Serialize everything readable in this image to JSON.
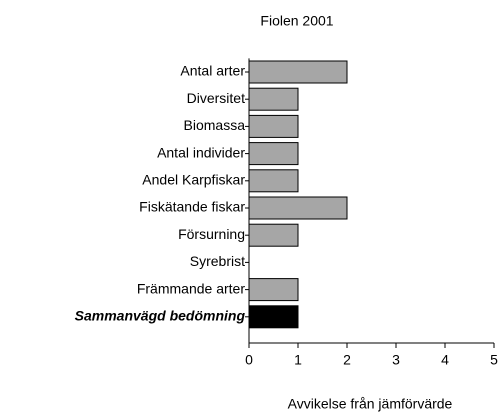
{
  "chart_data": {
    "type": "barh",
    "title": "Fiolen 2001",
    "categories": [
      "Antal arter",
      "Diversitet",
      "Biomassa",
      "Antal individer",
      "Andel Karpfiskar",
      "Fiskätande fiskar",
      "Försurning",
      "Syrebrist",
      "Främmande arter",
      "Sammanvägd bedömning"
    ],
    "values": [
      2,
      1,
      1,
      1,
      1,
      2,
      1,
      null,
      1,
      1
    ],
    "colors": [
      "#a6a6a6",
      "#a6a6a6",
      "#a6a6a6",
      "#a6a6a6",
      "#a6a6a6",
      "#a6a6a6",
      "#a6a6a6",
      "#a6a6a6",
      "#a6a6a6",
      "#000000"
    ],
    "x_label": "Avvikelse från jämförvärde",
    "xlim": [
      0,
      5
    ],
    "xticks": [
      0,
      1,
      2,
      3,
      4,
      5
    ]
  }
}
